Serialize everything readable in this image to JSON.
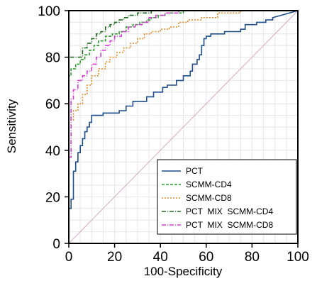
{
  "chart_data": {
    "type": "line",
    "title": "",
    "xlabel": "100-Specificity",
    "ylabel": "Sensitivity",
    "xlim": [
      0,
      100
    ],
    "ylim": [
      0,
      100
    ],
    "xticks": [
      "0",
      "20",
      "40",
      "60",
      "80",
      "100"
    ],
    "yticks": [
      "0",
      "20",
      "40",
      "60",
      "80",
      "100"
    ],
    "grid": true,
    "legend_position": "bottom-right",
    "reference_line": {
      "x": [
        0,
        100
      ],
      "y": [
        0,
        100
      ],
      "color": "#d8a8c0"
    },
    "series": [
      {
        "name": "PCT",
        "color": "#1f4e8c",
        "dash": "solid",
        "x": [
          0,
          0,
          1,
          1,
          2,
          2,
          3,
          3,
          4,
          4,
          5,
          5,
          6,
          6,
          7,
          7,
          8,
          8,
          9,
          9,
          10,
          10,
          15,
          15,
          22,
          22,
          25,
          25,
          28,
          28,
          34,
          34,
          37,
          37,
          41,
          41,
          43,
          43,
          47,
          47,
          50,
          50,
          53,
          53,
          54,
          54,
          56,
          56,
          57,
          57,
          58,
          58,
          59,
          59,
          60,
          60,
          62,
          62,
          68,
          68,
          75,
          75,
          77,
          77,
          82,
          82,
          86,
          86,
          89,
          89,
          100
        ],
        "y": [
          0,
          15,
          15,
          19,
          19,
          31,
          31,
          35,
          35,
          39,
          39,
          42,
          42,
          45,
          45,
          48,
          48,
          50,
          50,
          52,
          52,
          55,
          55,
          56,
          56,
          57,
          57,
          59,
          59,
          61,
          61,
          63,
          63,
          65,
          65,
          67,
          67,
          68,
          68,
          70,
          70,
          72,
          72,
          74,
          74,
          77,
          77,
          79,
          79,
          81,
          81,
          85,
          85,
          88,
          88,
          89,
          89,
          90,
          90,
          91,
          91,
          92,
          92,
          94,
          94,
          95,
          95,
          96,
          96,
          97,
          100
        ]
      },
      {
        "name": "SCMM-CD4",
        "color": "#2e9a2e",
        "dash": "4,2",
        "x": [
          0,
          0,
          1,
          1,
          3,
          3,
          5,
          5,
          7,
          7,
          9,
          9,
          11,
          11,
          13,
          13,
          16,
          16,
          19,
          19,
          22,
          22,
          25,
          25,
          28,
          28,
          31,
          31,
          34,
          34,
          36,
          36,
          39,
          39,
          42,
          42,
          50,
          50,
          100
        ],
        "y": [
          0,
          72,
          72,
          75,
          75,
          77,
          77,
          79,
          79,
          81,
          81,
          83,
          83,
          85,
          85,
          87,
          87,
          89,
          89,
          90,
          90,
          91,
          91,
          93,
          93,
          94,
          94,
          95,
          95,
          96,
          96,
          97,
          97,
          98,
          98,
          99,
          99,
          100,
          100
        ]
      },
      {
        "name": "SCMM-CD8",
        "color": "#e08a2a",
        "dash": "2,2",
        "x": [
          0,
          0,
          2,
          2,
          4,
          4,
          6,
          6,
          8,
          8,
          10,
          10,
          13,
          13,
          16,
          16,
          18,
          18,
          21,
          21,
          24,
          24,
          27,
          27,
          30,
          30,
          33,
          33,
          36,
          36,
          40,
          40,
          44,
          44,
          48,
          48,
          52,
          52,
          58,
          58,
          65,
          65,
          75,
          75,
          100
        ],
        "y": [
          0,
          53,
          53,
          57,
          57,
          60,
          60,
          64,
          64,
          68,
          68,
          72,
          72,
          75,
          75,
          78,
          78,
          80,
          80,
          82,
          82,
          84,
          84,
          86,
          86,
          88,
          88,
          90,
          90,
          91,
          91,
          92,
          92,
          93,
          93,
          95,
          95,
          96,
          96,
          97,
          97,
          99,
          99,
          100,
          100
        ]
      },
      {
        "name": "PCT  MIX  SCMM-CD4",
        "color": "#1f6b1f",
        "dash": "6,2,1,2",
        "x": [
          0,
          0,
          6,
          6,
          8,
          8,
          10,
          10,
          12,
          12,
          14,
          14,
          16,
          16,
          18,
          18,
          20,
          20,
          22,
          22,
          24,
          24,
          26,
          26,
          28,
          28,
          30,
          30,
          33,
          33,
          36,
          36,
          40,
          40,
          100
        ],
        "y": [
          0,
          80,
          80,
          84,
          84,
          86,
          86,
          88,
          88,
          90,
          90,
          91,
          91,
          93,
          93,
          94,
          94,
          95,
          95,
          96,
          96,
          97,
          97,
          98,
          98,
          98,
          98,
          99,
          99,
          99,
          99,
          100,
          100,
          100,
          100
        ]
      },
      {
        "name": "PCT  MIX  SCMM-CD8",
        "color": "#d63fd6",
        "dash": "6,2,1,2",
        "x": [
          0,
          0,
          1,
          1,
          2,
          2,
          4,
          4,
          6,
          6,
          8,
          8,
          10,
          10,
          12,
          12,
          14,
          14,
          16,
          16,
          18,
          18,
          20,
          20,
          23,
          23,
          26,
          26,
          29,
          29,
          32,
          32,
          35,
          35,
          38,
          38,
          42,
          42,
          48,
          48,
          100
        ],
        "y": [
          0,
          37,
          37,
          62,
          62,
          66,
          66,
          70,
          70,
          72,
          72,
          74,
          74,
          77,
          77,
          80,
          80,
          83,
          83,
          85,
          85,
          87,
          87,
          89,
          89,
          91,
          91,
          93,
          93,
          94,
          94,
          95,
          95,
          97,
          97,
          98,
          98,
          99,
          99,
          100,
          100
        ]
      }
    ]
  }
}
